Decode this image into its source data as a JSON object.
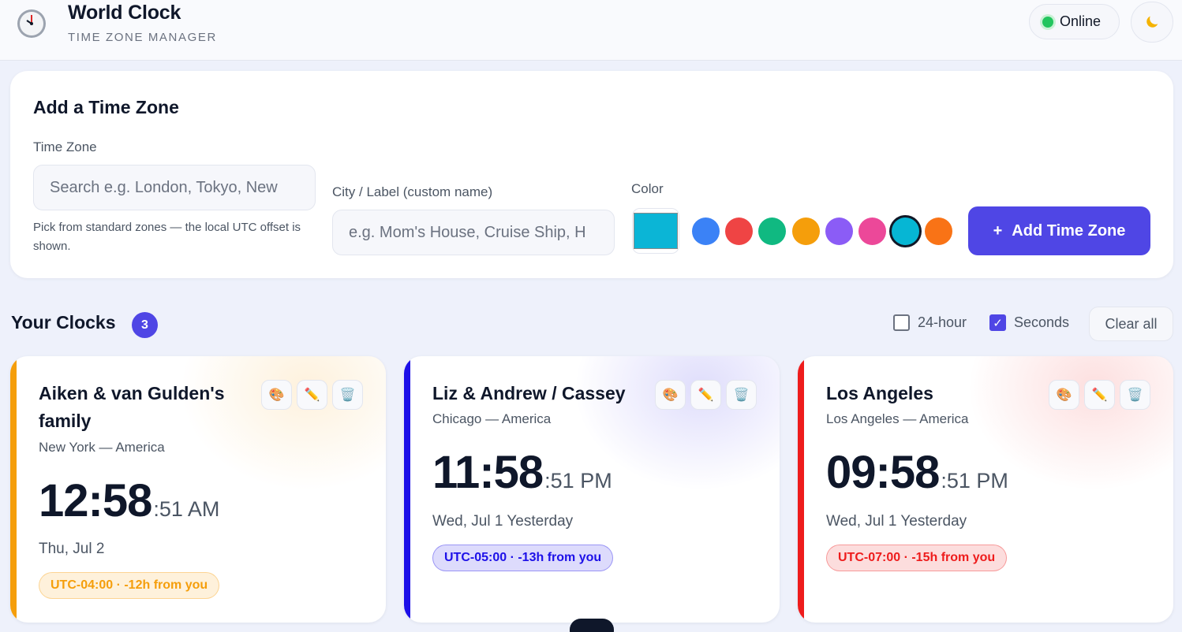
{
  "header": {
    "title": "World Clock",
    "subtitle": "TIME ZONE MANAGER",
    "status": "Online",
    "theme_icon": "moon-icon"
  },
  "add_panel": {
    "title": "Add a Time Zone",
    "tz_label": "Time Zone",
    "tz_placeholder": "Search e.g. London, Tokyo, New",
    "tz_hint": "Pick from standard zones — the local UTC offset is shown.",
    "city_label": "City / Label (custom name)",
    "city_placeholder": "e.g. Mom's House, Cruise Ship, H",
    "color_label": "Color",
    "selected_color": "#0bb5d6",
    "palette": [
      "#3b82f6",
      "#ef4444",
      "#10b981",
      "#f59e0b",
      "#8b5cf6",
      "#ec4899",
      "#06b6d4",
      "#f97316"
    ],
    "add_button_icon": "+",
    "add_button_label": "Add Time Zone"
  },
  "clocks_header": {
    "title": "Your Clocks",
    "count": "3",
    "hour24_label": "24-hour",
    "hour24_checked": false,
    "seconds_label": "Seconds",
    "seconds_checked": true,
    "clear_label": "Clear all"
  },
  "clocks": [
    {
      "name": "Aiken & van Gulden's family",
      "location": "New York — America",
      "time_hm": "12:58",
      "time_rest": ":51 AM",
      "date": "Thu, Jul 2",
      "offset": "UTC-04:00 · -12h from you",
      "accent": "#f59e0b"
    },
    {
      "name": "Liz & Andrew / Cassey",
      "location": "Chicago — America",
      "time_hm": "11:58",
      "time_rest": ":51 PM",
      "date": "Wed, Jul 1 Yesterday",
      "offset": "UTC-05:00 · -13h from you",
      "accent": "#1d10e8"
    },
    {
      "name": "Los Angeles",
      "location": "Los Angeles — America",
      "time_hm": "09:58",
      "time_rest": ":51 PM",
      "date": "Wed, Jul 1 Yesterday",
      "offset": "UTC-07:00 · -15h from you",
      "accent": "#ee1c1c"
    }
  ],
  "card_actions": {
    "color_icon": "palette-icon",
    "edit_icon": "pencil-icon",
    "delete_icon": "trash-icon"
  }
}
